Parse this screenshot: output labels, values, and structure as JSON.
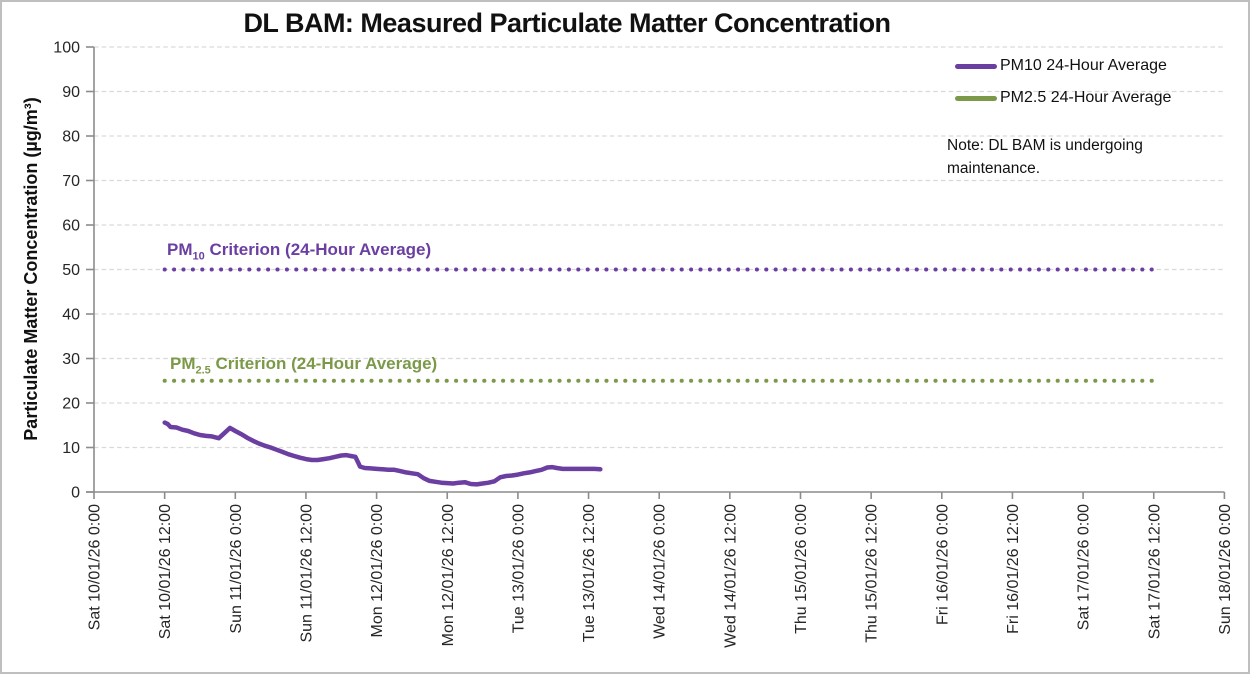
{
  "figure": {
    "note_text": "Note: DL BAM is undergoing maintenance."
  },
  "legend": {
    "items": [
      {
        "label": "PM10 24-Hour Average",
        "color": "#6B3FA2"
      },
      {
        "label": "PM2.5 24-Hour Average",
        "color": "#7B9948"
      }
    ]
  },
  "criterion_labels": [
    {
      "prefix": "PM",
      "sub": "10",
      "rest": " Criterion (24-Hour Average)",
      "color": "#6B3FA2"
    },
    {
      "prefix": "PM",
      "sub": "2.5",
      "rest": " Criterion (24-Hour Average)",
      "color": "#7B9948"
    }
  ],
  "chart_data": {
    "type": "line",
    "title": "DL BAM: Measured Particulate Matter Concentration",
    "xlabel": "",
    "ylabel": "Particulate Matter Concentration (µg/m³)",
    "ylim": [
      0,
      100
    ],
    "ytick_interval": 10,
    "ytick_labels": [
      "0",
      "10",
      "20",
      "30",
      "40",
      "50",
      "60",
      "70",
      "80",
      "90",
      "100"
    ],
    "grid": "horizontal dashed gridlines every 10",
    "legend_position": "top-right",
    "x_axis_unit": "hours since Sat 10/01/26 0:00",
    "x_tick_hours": [
      0,
      12,
      24,
      36,
      48,
      60,
      72,
      84,
      96,
      108,
      120,
      132,
      144,
      156,
      168,
      180,
      192
    ],
    "x_tick_labels": [
      "Sat 10/01/26 0:00",
      "Sat 10/01/26 12:00",
      "Sun 11/01/26 0:00",
      "Sun 11/01/26 12:00",
      "Mon 12/01/26 0:00",
      "Mon 12/01/26 12:00",
      "Tue 13/01/26 0:00",
      "Tue 13/01/26 12:00",
      "Wed 14/01/26 0:00",
      "Wed 14/01/26 12:00",
      "Thu 15/01/26 0:00",
      "Thu 15/01/26 12:00",
      "Fri 16/01/26 0:00",
      "Fri 16/01/26 12:00",
      "Sat 17/01/26 0:00",
      "Sat 17/01/26 12:00",
      "Sun 18/01/26 0:00"
    ],
    "series": [
      {
        "name": "PM10 24-Hour Average",
        "color": "#6B3FA2",
        "line_style": "solid",
        "points_hours_value": [
          [
            12,
            15.6
          ],
          [
            12.5,
            15.3
          ],
          [
            13,
            14.6
          ],
          [
            14,
            14.5
          ],
          [
            15,
            14.0
          ],
          [
            16,
            13.7
          ],
          [
            17,
            13.2
          ],
          [
            18,
            12.8
          ],
          [
            19,
            12.6
          ],
          [
            20,
            12.5
          ],
          [
            21.2,
            12.1
          ],
          [
            22.2,
            13.3
          ],
          [
            23.1,
            14.4
          ],
          [
            24,
            13.7
          ],
          [
            25,
            13.0
          ],
          [
            26,
            12.2
          ],
          [
            27,
            11.5
          ],
          [
            28,
            10.9
          ],
          [
            29,
            10.4
          ],
          [
            30,
            10.0
          ],
          [
            31,
            9.5
          ],
          [
            32,
            9.0
          ],
          [
            33,
            8.5
          ],
          [
            34,
            8.1
          ],
          [
            35,
            7.7
          ],
          [
            36,
            7.4
          ],
          [
            37,
            7.2
          ],
          [
            38,
            7.2
          ],
          [
            39,
            7.4
          ],
          [
            40,
            7.6
          ],
          [
            41,
            7.9
          ],
          [
            42,
            8.2
          ],
          [
            42.8,
            8.3
          ],
          [
            43.6,
            8.1
          ],
          [
            44.4,
            7.9
          ],
          [
            45.2,
            5.7
          ],
          [
            46,
            5.4
          ],
          [
            47,
            5.3
          ],
          [
            48,
            5.2
          ],
          [
            49,
            5.1
          ],
          [
            50,
            5.0
          ],
          [
            51,
            5.0
          ],
          [
            52,
            4.7
          ],
          [
            53,
            4.4
          ],
          [
            54,
            4.2
          ],
          [
            55,
            4.0
          ],
          [
            56,
            3.1
          ],
          [
            57,
            2.5
          ],
          [
            58,
            2.3
          ],
          [
            59,
            2.1
          ],
          [
            60,
            2.0
          ],
          [
            61,
            1.9
          ],
          [
            62,
            2.1
          ],
          [
            63,
            2.2
          ],
          [
            64,
            1.8
          ],
          [
            65,
            1.7
          ],
          [
            66,
            1.9
          ],
          [
            67,
            2.1
          ],
          [
            68,
            2.4
          ],
          [
            69,
            3.3
          ],
          [
            70,
            3.6
          ],
          [
            71,
            3.7
          ],
          [
            72,
            3.9
          ],
          [
            73,
            4.2
          ],
          [
            74,
            4.4
          ],
          [
            75,
            4.7
          ],
          [
            76,
            5.0
          ],
          [
            77,
            5.5
          ],
          [
            77.8,
            5.6
          ],
          [
            78.6,
            5.4
          ],
          [
            79.6,
            5.2
          ],
          [
            81,
            5.2
          ],
          [
            82,
            5.2
          ],
          [
            83,
            5.2
          ],
          [
            84,
            5.2
          ],
          [
            85,
            5.2
          ],
          [
            86,
            5.1
          ]
        ]
      },
      {
        "name": "PM2.5 24-Hour Average",
        "color": "#7B9948",
        "line_style": "solid",
        "points_hours_value": []
      }
    ],
    "reference_lines": [
      {
        "name": "PM10 Criterion (24-Hour Average)",
        "value": 50,
        "color": "#6B3FA2",
        "style": "dotted",
        "start_hours": 12,
        "end_hours": 180
      },
      {
        "name": "PM2.5 Criterion (24-Hour Average)",
        "value": 25,
        "color": "#7B9948",
        "style": "dotted",
        "start_hours": 12,
        "end_hours": 180
      }
    ]
  }
}
